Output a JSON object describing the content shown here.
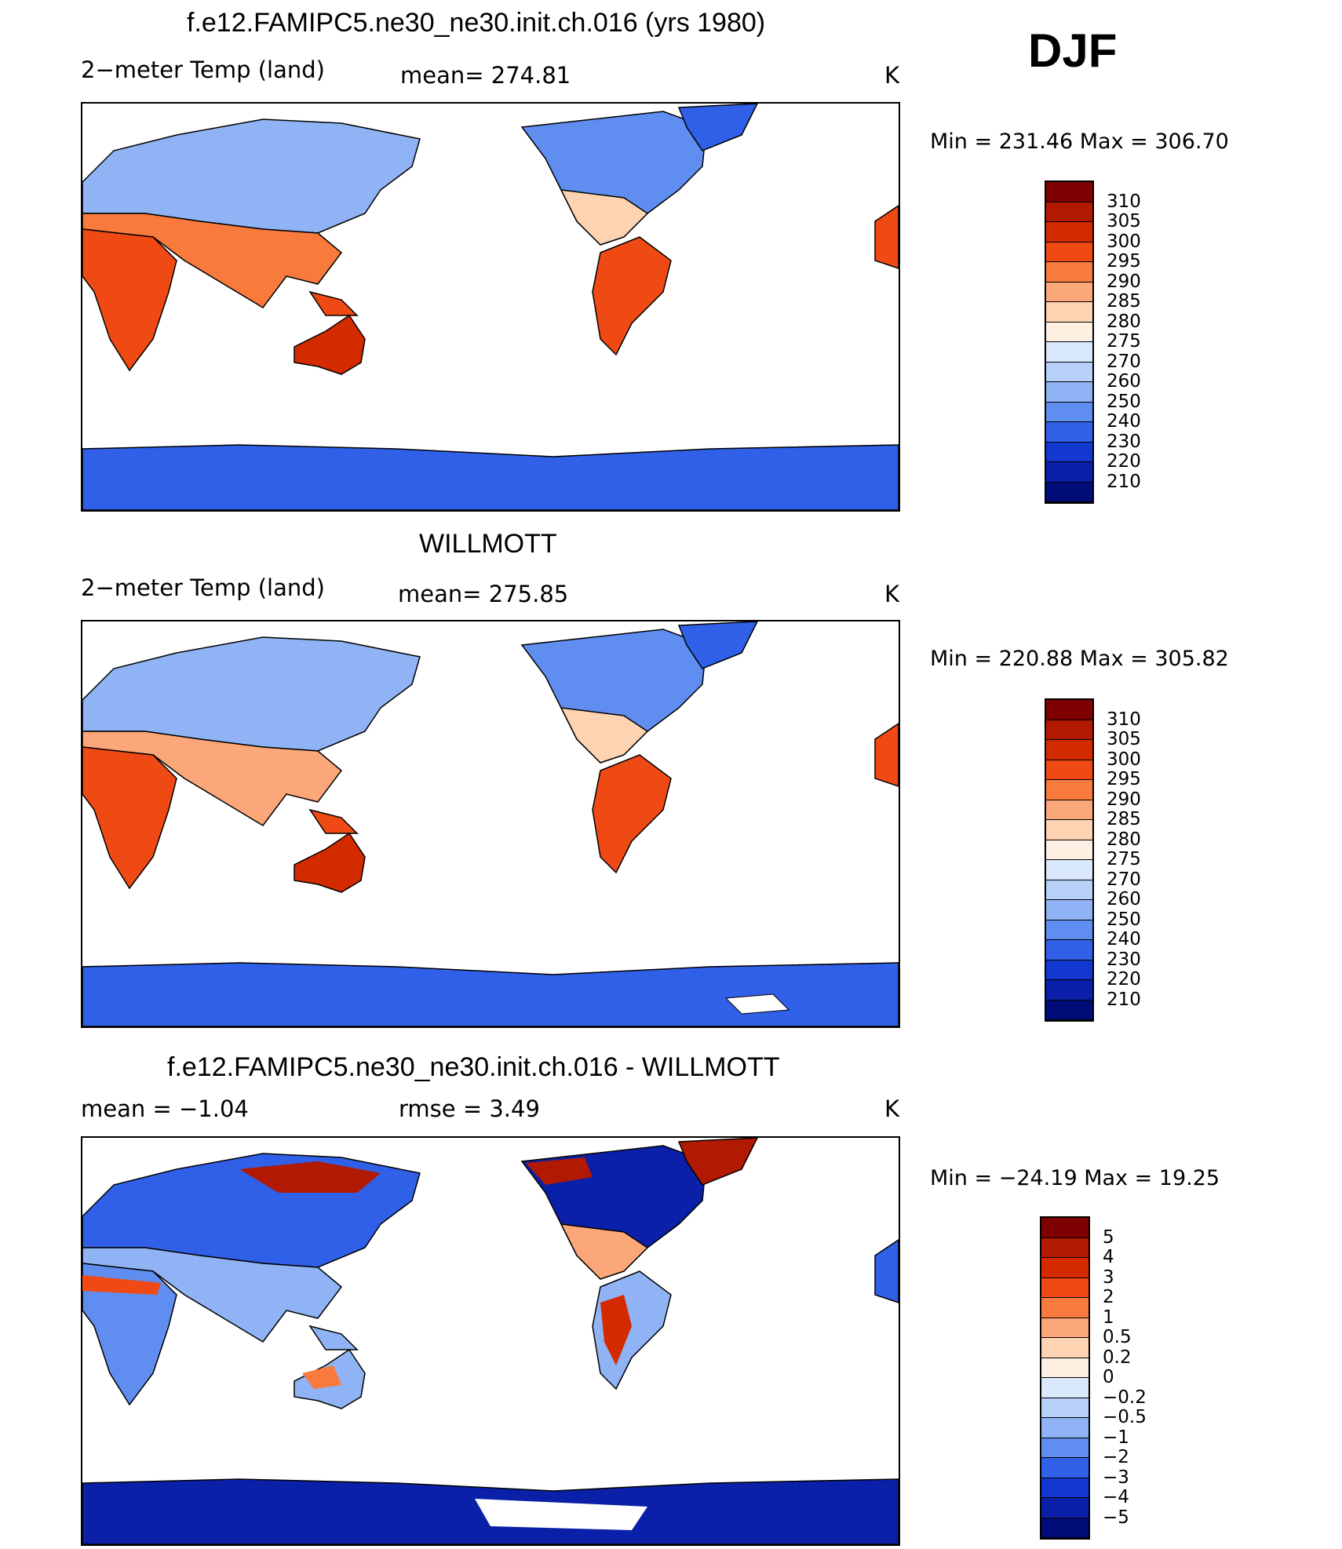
{
  "season": "DJF",
  "chart_data": [
    {
      "type": "heatmap",
      "title": "f.e12.FAMIPC5.ne30_ne30.init.ch.016 (yrs 1980)",
      "variable": "2−meter Temp (land)",
      "stat_text": "mean= 274.81",
      "units": "K",
      "minmax_text": "Min  =  231.46  Max  =  306.70",
      "stats": {
        "mean": 274.81,
        "min": 231.46,
        "max": 306.7
      },
      "colorbar": {
        "labels": [
          "310",
          "305",
          "300",
          "295",
          "290",
          "285",
          "280",
          "275",
          "270",
          "260",
          "250",
          "240",
          "230",
          "220",
          "210"
        ],
        "colors": [
          "#7f0000",
          "#b11900",
          "#d42a00",
          "#f04a14",
          "#f87a3c",
          "#fca77a",
          "#fdd3b2",
          "#fdf0e2",
          "#d9e8fb",
          "#b8d1f9",
          "#8fb3f4",
          "#5f8ef0",
          "#3060e8",
          "#1238d0",
          "#0a20a8",
          "#000d78"
        ]
      }
    },
    {
      "type": "heatmap",
      "title": "WILLMOTT",
      "variable": "2−meter Temp (land)",
      "stat_text": "mean= 275.85",
      "units": "K",
      "minmax_text": "Min  =  220.88  Max  =  305.82",
      "stats": {
        "mean": 275.85,
        "min": 220.88,
        "max": 305.82
      },
      "colorbar": {
        "labels": [
          "310",
          "305",
          "300",
          "295",
          "290",
          "285",
          "280",
          "275",
          "270",
          "260",
          "250",
          "240",
          "230",
          "220",
          "210"
        ],
        "colors": [
          "#7f0000",
          "#b11900",
          "#d42a00",
          "#f04a14",
          "#f87a3c",
          "#fca77a",
          "#fdd3b2",
          "#fdf0e2",
          "#d9e8fb",
          "#b8d1f9",
          "#8fb3f4",
          "#5f8ef0",
          "#3060e8",
          "#1238d0",
          "#0a20a8",
          "#000d78"
        ]
      }
    },
    {
      "type": "heatmap",
      "title": "f.e12.FAMIPC5.ne30_ne30.init.ch.016 - WILLMOTT",
      "stat_text": "mean =    −1.04",
      "rmse_text": "rmse =     3.49",
      "units": "K",
      "minmax_text": "Min  =  −24.19  Max  =    19.25",
      "stats": {
        "mean": -1.04,
        "rmse": 3.49,
        "min": -24.19,
        "max": 19.25
      },
      "colorbar": {
        "labels": [
          "5",
          "4",
          "3",
          "2",
          "1",
          "0.5",
          "0.2",
          "0",
          "−0.2",
          "−0.5",
          "−1",
          "−2",
          "−3",
          "−4",
          "−5"
        ],
        "colors": [
          "#7f0000",
          "#b11900",
          "#d42a00",
          "#f04a14",
          "#f87a3c",
          "#fca77a",
          "#fdd3b2",
          "#fdf0e2",
          "#d9e8fb",
          "#b8d1f9",
          "#8fb3f4",
          "#5f8ef0",
          "#3060e8",
          "#1238d0",
          "#0a20a8",
          "#000d78"
        ]
      }
    }
  ]
}
